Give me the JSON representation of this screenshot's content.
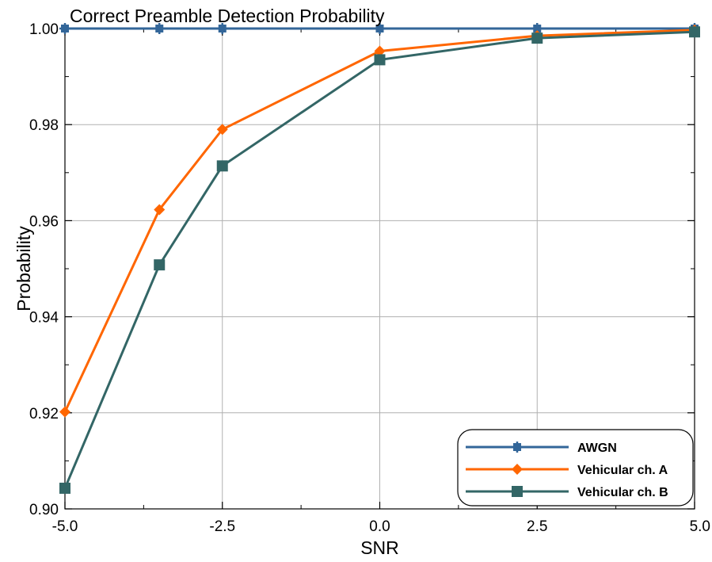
{
  "chart_data": {
    "type": "line",
    "title": "Correct Preamble Detection Probability",
    "xlabel": "SNR",
    "ylabel": "Probability",
    "x": [
      -5.0,
      -3.5,
      -2.5,
      0.0,
      2.5,
      5.0
    ],
    "xticks": [
      "-5.0",
      "-2.5",
      "0.0",
      "2.5",
      "5.0"
    ],
    "yticks": [
      "0.90",
      "0.92",
      "0.94",
      "0.96",
      "0.98",
      "1.00"
    ],
    "xlim": [
      -5.0,
      5.0
    ],
    "ylim": [
      0.9,
      1.0
    ],
    "grid": true,
    "legend_position": "bottom-right",
    "series": [
      {
        "name": "AWGN",
        "color": "#336699",
        "marker": "cross-square",
        "values": [
          1.0,
          1.0,
          1.0,
          1.0,
          1.0,
          1.0
        ]
      },
      {
        "name": "Vehicular ch. A",
        "color": "#ff6600",
        "marker": "diamond",
        "values": [
          0.9202,
          0.9623,
          0.979,
          0.9953,
          0.9985,
          0.9997
        ]
      },
      {
        "name": "Vehicular ch. B",
        "color": "#336666",
        "marker": "square",
        "values": [
          0.9043,
          0.9508,
          0.9714,
          0.9935,
          0.998,
          0.9993
        ]
      }
    ]
  }
}
